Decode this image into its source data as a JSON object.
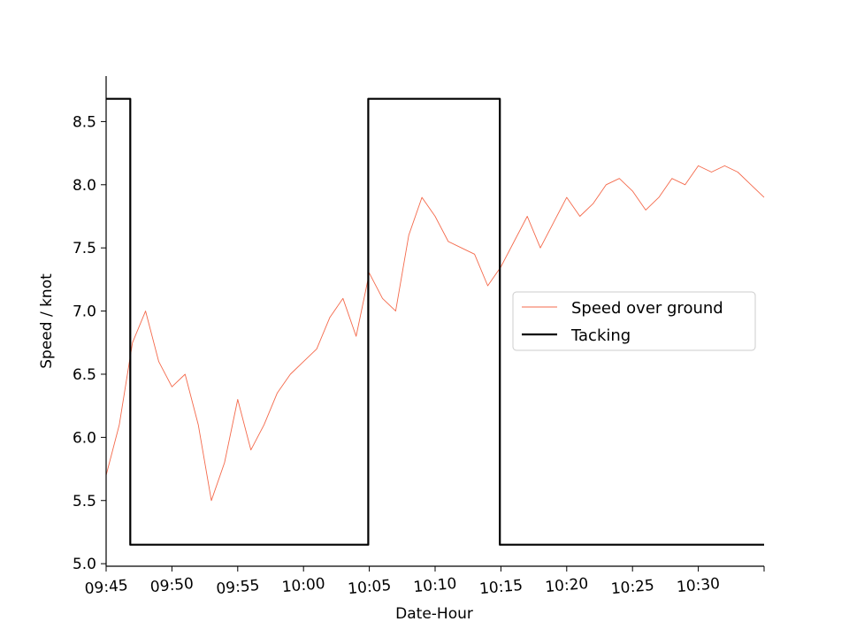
{
  "chart_data": {
    "type": "line",
    "xlabel": "Date-Hour",
    "ylabel": "Speed / knot",
    "x_range": [
      "09:45",
      "10:35"
    ],
    "ylim": [
      4.98,
      8.86
    ],
    "x_ticks": [
      "09:45",
      "09:50",
      "09:55",
      "10:00",
      "10:05",
      "10:10",
      "10:15",
      "10:20",
      "10:25",
      "10:30",
      "10:35"
    ],
    "x_tick_labels": [
      "09:45",
      "09:50",
      "09:55",
      "10:00",
      "10:05",
      "10:10",
      "10:15",
      "10:20",
      "10:25",
      "10:30",
      ""
    ],
    "y_ticks": [
      5.0,
      5.5,
      6.0,
      6.5,
      7.0,
      7.5,
      8.0,
      8.5
    ],
    "y_tick_labels": [
      "5.0",
      "5.5",
      "6.0",
      "6.5",
      "7.0",
      "7.5",
      "8.0",
      "8.5"
    ],
    "grid": false,
    "legend_position": "center-right",
    "series": [
      {
        "name": "Speed over ground",
        "color": "#f4694b",
        "style": "thin-line",
        "x": [
          "09:45",
          "09:46",
          "09:47",
          "09:48",
          "09:49",
          "09:50",
          "09:51",
          "09:52",
          "09:53",
          "09:54",
          "09:55",
          "09:56",
          "09:57",
          "09:58",
          "09:59",
          "10:00",
          "10:01",
          "10:02",
          "10:03",
          "10:04",
          "10:05",
          "10:06",
          "10:07",
          "10:08",
          "10:09",
          "10:10",
          "10:11",
          "10:12",
          "10:13",
          "10:14",
          "10:15",
          "10:16",
          "10:17",
          "10:18",
          "10:19",
          "10:20",
          "10:21",
          "10:22",
          "10:23",
          "10:24",
          "10:25",
          "10:26",
          "10:27",
          "10:28",
          "10:29",
          "10:30",
          "10:31",
          "10:32",
          "10:33",
          "10:34",
          "10:35"
        ],
        "y": [
          5.7,
          6.1,
          6.75,
          7.0,
          6.6,
          6.4,
          6.5,
          6.1,
          5.5,
          5.8,
          6.3,
          5.9,
          6.1,
          6.35,
          6.5,
          6.6,
          6.7,
          6.95,
          7.1,
          6.8,
          7.3,
          7.1,
          7.0,
          7.6,
          7.9,
          7.75,
          7.55,
          7.5,
          7.45,
          7.2,
          7.35,
          7.55,
          7.75,
          7.5,
          7.7,
          7.9,
          7.75,
          7.85,
          8.0,
          8.05,
          7.95,
          7.8,
          7.9,
          8.05,
          8.0,
          8.15,
          8.1,
          8.15,
          8.1,
          8.0,
          7.9
        ]
      },
      {
        "name": "Tacking",
        "color": "#000000",
        "style": "step",
        "x": [
          "09:45",
          "09:46:50",
          "09:46:50",
          "10:04:55",
          "10:04:55",
          "10:14:55",
          "10:14:55",
          "10:35"
        ],
        "y": [
          8.68,
          8.68,
          5.15,
          5.15,
          8.68,
          8.68,
          5.15,
          5.15
        ]
      }
    ]
  }
}
